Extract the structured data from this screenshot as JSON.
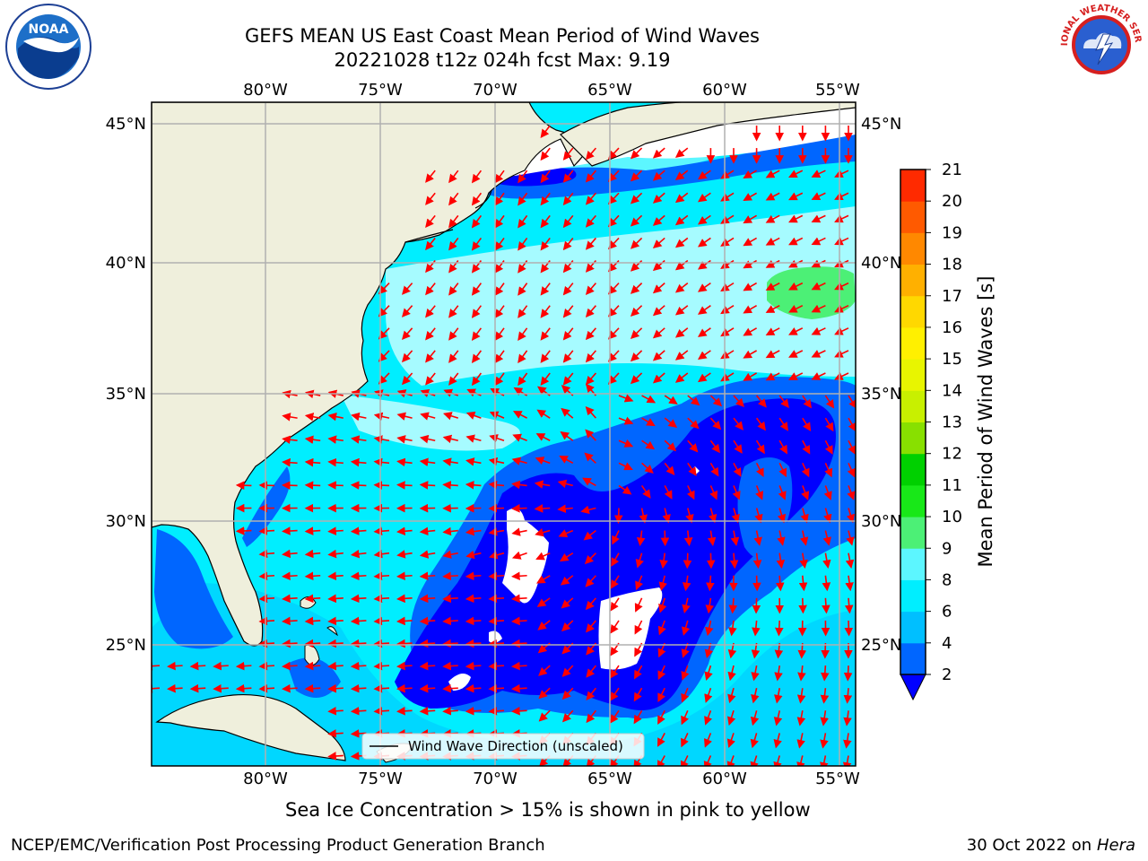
{
  "title_line1": "GEFS MEAN US East Coast Mean Period of Wind Waves",
  "title_line2": "20221028 t12z 024h fcst   Max: 9.19",
  "lon_ticks": [
    "80°W",
    "75°W",
    "70°W",
    "65°W",
    "60°W",
    "55°W"
  ],
  "lat_ticks": [
    "45°N",
    "40°N",
    "35°N",
    "30°N",
    "25°N"
  ],
  "legend_label": "Wind Wave Direction (unscaled)",
  "colorbar": {
    "label": "Mean Period of Wind Waves [s]",
    "ticks": [
      "2",
      "4",
      "6",
      "8",
      "9",
      "10",
      "11",
      "12",
      "13",
      "14",
      "15",
      "16",
      "17",
      "18",
      "19",
      "20",
      "21"
    ],
    "colors": [
      "#0066ff",
      "#00bfff",
      "#00eeff",
      "#5cf6ff",
      "#a6fbff",
      "#4cf076",
      "#18e818",
      "#00d000",
      "#88e000",
      "#c8f000",
      "#e8f500",
      "#fff000",
      "#ffd800",
      "#ffb000",
      "#ff8800",
      "#ff5a00",
      "#ff2a00",
      "#ff0000"
    ],
    "under_color": "#0000ff"
  },
  "ice_note": "Sea Ice Concentration > 15% is shown in pink to yellow",
  "footer_left": "NCEP/EMC/Verification Post Processing Product Generation Branch",
  "footer_right_prefix": "30 Oct 2022 on ",
  "footer_right_host": "Hera",
  "logos": {
    "noaa": {
      "text": "NOAA",
      "ring_text": "NATIONAL OCEANIC AND ATMOSPHERIC ADMINISTRATION · U.S. DEPARTMENT OF COMMERCE"
    },
    "nws": {
      "ring_text": "NATIONAL WEATHER SERVICE"
    }
  },
  "colors": {
    "land": "#efefdc",
    "coast": "#000000",
    "arrows": "#ff0000",
    "grid": "#b0b0b0",
    "white_water": "#ffffff"
  }
}
